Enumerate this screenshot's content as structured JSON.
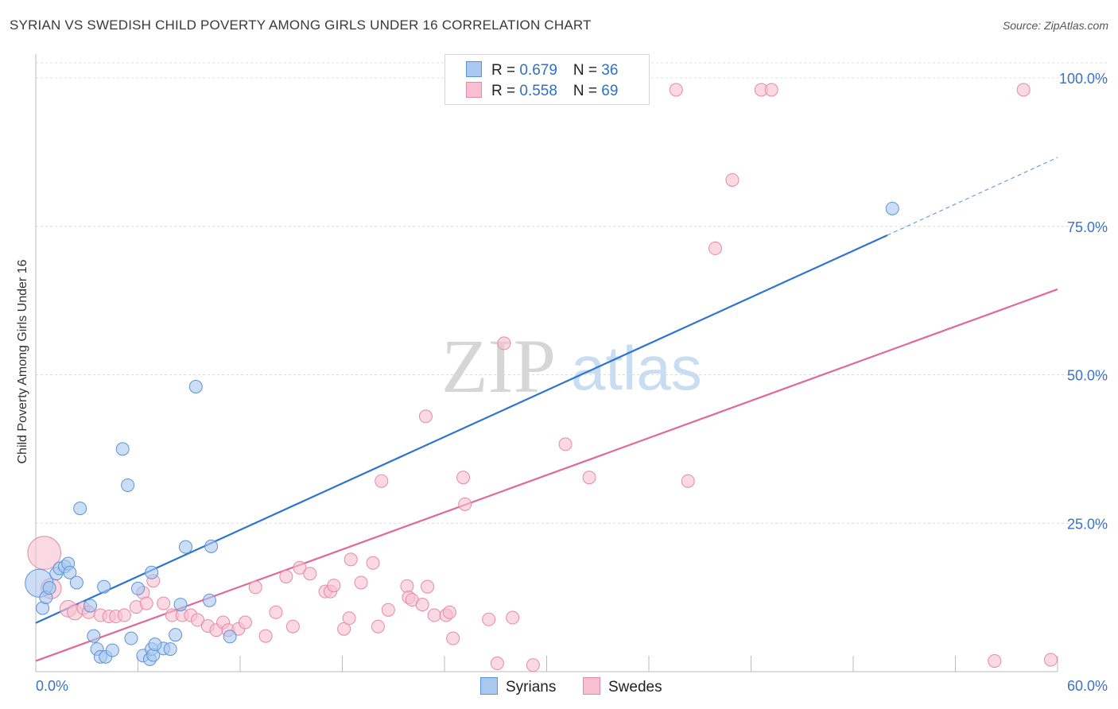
{
  "header": {
    "title": "SYRIAN VS SWEDISH CHILD POVERTY AMONG GIRLS UNDER 16 CORRELATION CHART",
    "source": "Source: ZipAtlas.com"
  },
  "watermark": {
    "zip": "ZIP",
    "atlas": "atlas"
  },
  "legend": {
    "rows": [
      {
        "r_label": "R = ",
        "r_value": "0.679",
        "n_label": "N = ",
        "n_value": "36"
      },
      {
        "r_label": "R = ",
        "r_value": "0.558",
        "n_label": "N = ",
        "n_value": "69"
      }
    ]
  },
  "bottom_legend": {
    "syrians": "Syrians",
    "swedes": "Swedes"
  },
  "colors": {
    "syrians_fill": "#a9c8f0",
    "syrians_stroke": "#5d93d6",
    "syrians_line": "#2d74d0",
    "swedes_fill": "#f7bfd0",
    "swedes_stroke": "#e58aa6",
    "swedes_line": "#e0699a",
    "tick_text": "#3a72c4",
    "grid": "#dcdcdc"
  },
  "chart_data": {
    "type": "scatter",
    "title": "SYRIAN VS SWEDISH CHILD POVERTY AMONG GIRLS UNDER 16 CORRELATION CHART",
    "xlabel": "",
    "ylabel": "Child Poverty Among Girls Under 16",
    "xlim": [
      0,
      60
    ],
    "ylim": [
      0,
      100
    ],
    "x_tick_labels": [
      "0.0%",
      "60.0%"
    ],
    "y_ticks": [
      25,
      50,
      75,
      100
    ],
    "y_tick_labels": [
      "25.0%",
      "50.0%",
      "75.0%",
      "100.0%"
    ],
    "grid": true,
    "legend_placement": "top-center",
    "series": [
      {
        "name": "Syrians",
        "R": 0.679,
        "N": 36,
        "trend": {
          "x": [
            0,
            50
          ],
          "y": [
            8.2,
            73.5
          ],
          "dashed_extension": {
            "x": [
              50,
              60
            ],
            "y": [
              73.5,
              86.6
            ]
          }
        },
        "points": [
          [
            0.2,
            14.9,
            2.2
          ],
          [
            0.4,
            10.7,
            1
          ],
          [
            0.6,
            12.5,
            1
          ],
          [
            0.8,
            14.1,
            1
          ],
          [
            1.2,
            16.5,
            1
          ],
          [
            1.4,
            17.4,
            1
          ],
          [
            1.7,
            17.7,
            1
          ],
          [
            1.9,
            18.2,
            1
          ],
          [
            2.0,
            16.7,
            1
          ],
          [
            2.4,
            15.0,
            1
          ],
          [
            2.6,
            27.5,
            1
          ],
          [
            3.2,
            11.1,
            1
          ],
          [
            3.4,
            6.0,
            1
          ],
          [
            3.6,
            3.8,
            1
          ],
          [
            3.8,
            2.5,
            1
          ],
          [
            4.1,
            2.5,
            1
          ],
          [
            4.0,
            14.3,
            1
          ],
          [
            4.5,
            3.6,
            1
          ],
          [
            5.1,
            37.5,
            1
          ],
          [
            5.4,
            31.4,
            1
          ],
          [
            5.6,
            5.6,
            1
          ],
          [
            6.0,
            14.0,
            1
          ],
          [
            6.3,
            2.7,
            1
          ],
          [
            6.7,
            2.1,
            1
          ],
          [
            6.8,
            3.8,
            1
          ],
          [
            6.9,
            2.8,
            1
          ],
          [
            7.5,
            3.9,
            1
          ],
          [
            7.9,
            3.8,
            1
          ],
          [
            6.8,
            16.7,
            1
          ],
          [
            7.0,
            4.6,
            1
          ],
          [
            8.2,
            6.2,
            1
          ],
          [
            8.5,
            11.3,
            1
          ],
          [
            8.8,
            21.0,
            1
          ],
          [
            9.4,
            48.0,
            1
          ],
          [
            10.3,
            21.1,
            1
          ],
          [
            10.2,
            12.0,
            1
          ],
          [
            11.4,
            5.9,
            1
          ],
          [
            50.3,
            78.0,
            1
          ]
        ]
      },
      {
        "name": "Swedes",
        "R": 0.558,
        "N": 69,
        "trend": {
          "x": [
            0,
            60
          ],
          "y": [
            1.8,
            64.4
          ]
        },
        "points": [
          [
            0.5,
            20.0,
            2.6
          ],
          [
            0.9,
            14.0,
            1.6
          ],
          [
            1.9,
            10.6,
            1.3
          ],
          [
            2.3,
            10.0,
            1.2
          ],
          [
            2.8,
            10.7,
            1
          ],
          [
            3.1,
            10.0,
            1
          ],
          [
            3.8,
            9.5,
            1
          ],
          [
            4.3,
            9.3,
            1
          ],
          [
            4.7,
            9.3,
            1
          ],
          [
            5.2,
            9.5,
            1
          ],
          [
            5.9,
            10.9,
            1
          ],
          [
            6.3,
            13.3,
            1
          ],
          [
            6.5,
            11.5,
            1
          ],
          [
            6.9,
            15.3,
            1
          ],
          [
            7.5,
            11.5,
            1
          ],
          [
            8.0,
            9.5,
            1
          ],
          [
            8.6,
            9.5,
            1
          ],
          [
            9.1,
            9.5,
            1
          ],
          [
            9.5,
            8.7,
            1
          ],
          [
            10.1,
            7.7,
            1
          ],
          [
            10.6,
            7.0,
            1
          ],
          [
            11.0,
            8.3,
            1
          ],
          [
            11.3,
            7.0,
            1
          ],
          [
            11.9,
            7.2,
            1
          ],
          [
            12.3,
            8.3,
            1
          ],
          [
            12.9,
            14.2,
            1
          ],
          [
            13.5,
            6.0,
            1
          ],
          [
            14.1,
            10.0,
            1
          ],
          [
            14.7,
            16.0,
            1
          ],
          [
            15.1,
            7.6,
            1
          ],
          [
            15.5,
            17.5,
            1
          ],
          [
            16.1,
            16.5,
            1
          ],
          [
            17.0,
            13.5,
            1
          ],
          [
            17.3,
            13.5,
            1
          ],
          [
            17.5,
            14.5,
            1
          ],
          [
            18.1,
            7.2,
            1
          ],
          [
            18.4,
            9.0,
            1
          ],
          [
            18.5,
            18.9,
            1
          ],
          [
            19.1,
            15.0,
            1
          ],
          [
            19.8,
            18.3,
            1
          ],
          [
            20.1,
            7.6,
            1
          ],
          [
            20.3,
            32.1,
            1
          ],
          [
            20.7,
            10.4,
            1
          ],
          [
            21.8,
            14.4,
            1
          ],
          [
            21.9,
            12.5,
            1
          ],
          [
            22.1,
            12.1,
            1
          ],
          [
            22.7,
            11.3,
            1
          ],
          [
            22.9,
            43.0,
            1
          ],
          [
            23.0,
            14.3,
            1
          ],
          [
            23.4,
            9.5,
            1
          ],
          [
            24.1,
            9.5,
            1
          ],
          [
            24.3,
            10.0,
            1
          ],
          [
            24.5,
            5.6,
            1
          ],
          [
            25.1,
            32.7,
            1
          ],
          [
            25.2,
            28.2,
            1
          ],
          [
            26.6,
            8.8,
            1
          ],
          [
            27.1,
            1.4,
            1
          ],
          [
            27.5,
            55.3,
            1
          ],
          [
            28.0,
            9.1,
            1
          ],
          [
            29.2,
            1.1,
            1
          ],
          [
            31.1,
            38.3,
            1
          ],
          [
            32.5,
            32.7,
            1
          ],
          [
            37.6,
            98.0,
            1
          ],
          [
            38.3,
            32.1,
            1
          ],
          [
            39.9,
            71.3,
            1
          ],
          [
            40.9,
            82.8,
            1
          ],
          [
            42.6,
            98.0,
            1
          ],
          [
            43.2,
            98.0,
            1
          ],
          [
            56.3,
            1.8,
            1
          ],
          [
            58.0,
            98.0,
            1
          ],
          [
            59.6,
            2.0,
            1
          ]
        ]
      }
    ]
  }
}
